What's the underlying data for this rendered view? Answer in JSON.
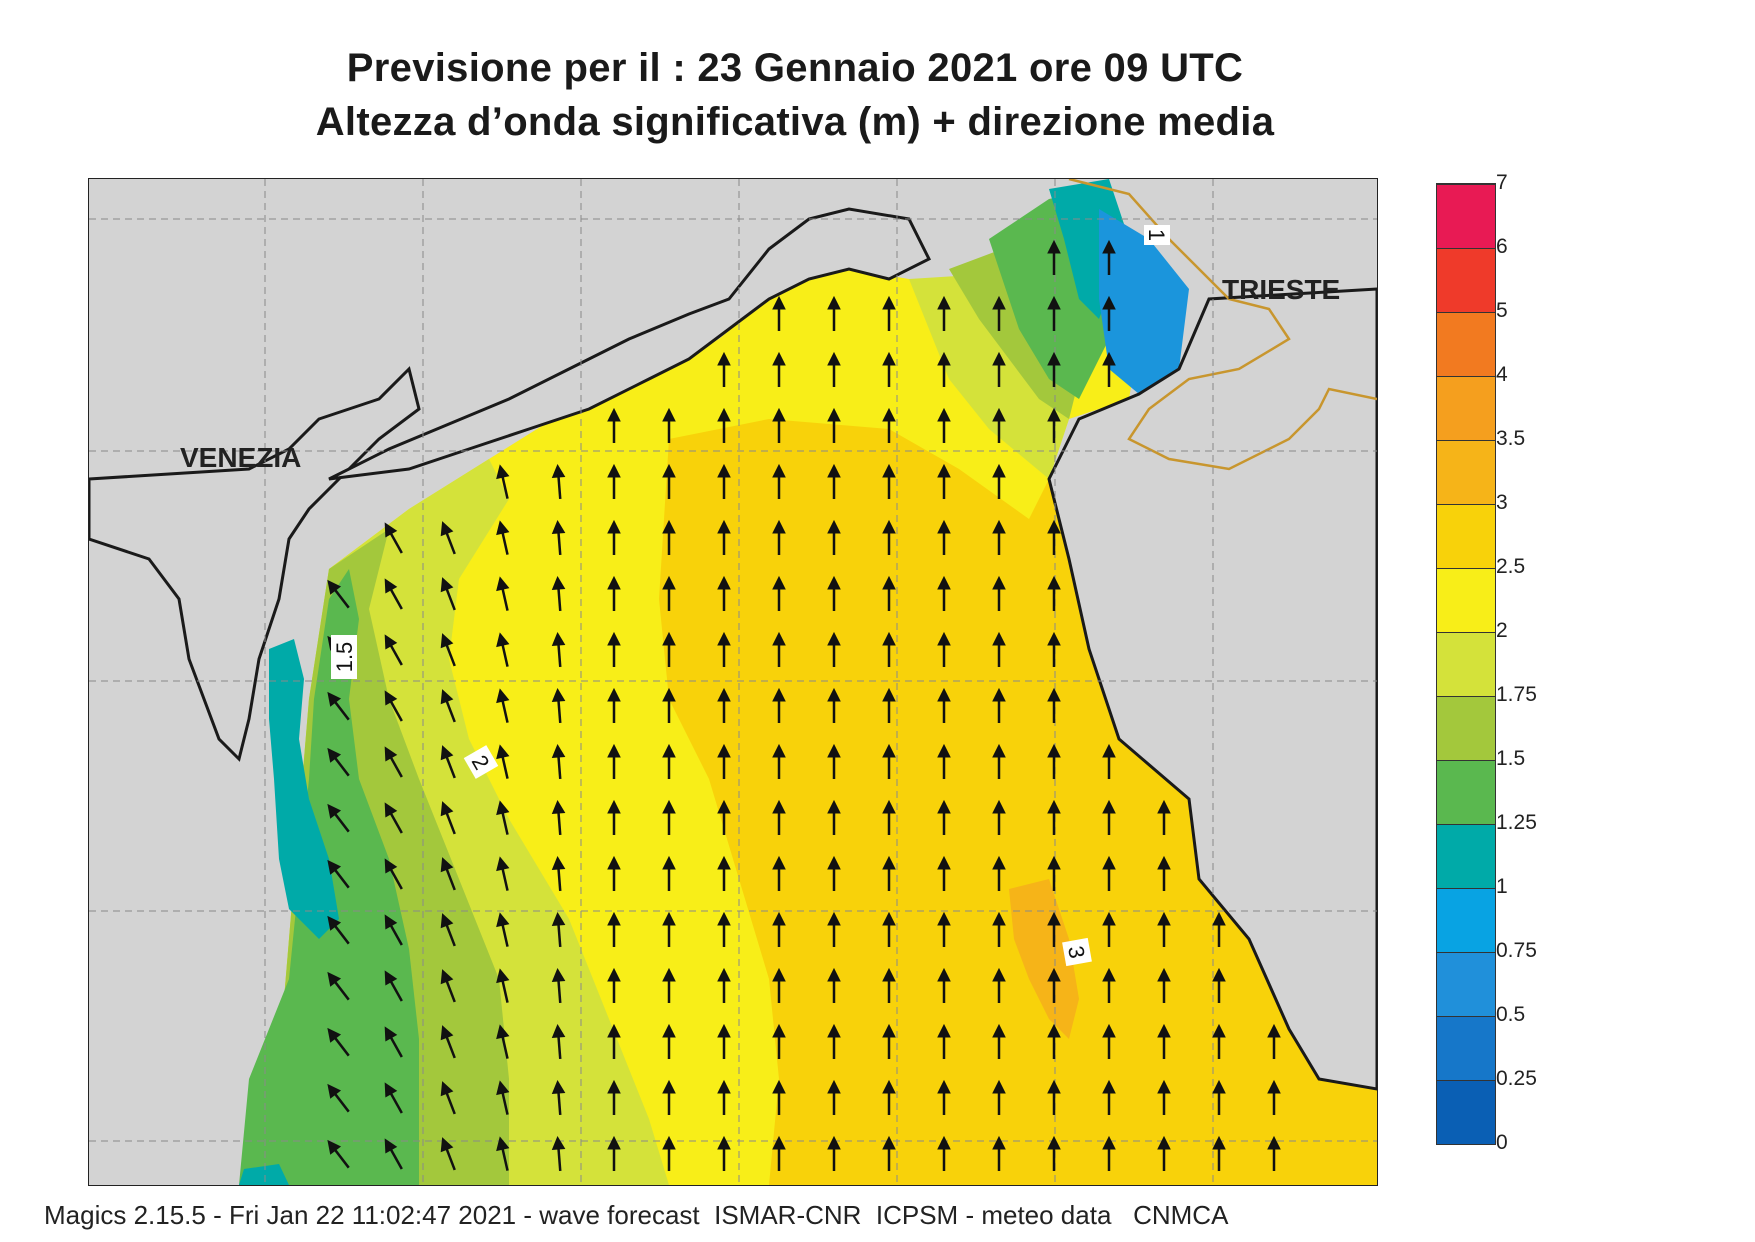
{
  "header": {
    "title_line1": "Previsione per il  :  23  Gennaio  2021    ore 09 UTC",
    "title_line2": "Altezza d’onda significativa (m) + direzione media"
  },
  "map": {
    "cities": [
      "VENEZIA",
      "TRIESTE"
    ],
    "contour_labels": [
      "1",
      "1.5",
      "2",
      "3"
    ],
    "arrow_direction": "north",
    "land_color": "#d3d3d3",
    "coast_color": "#1a1a1a",
    "border_color": "#c8962e"
  },
  "legend": {
    "ticks": [
      "0",
      "0.25",
      "0.5",
      "0.75",
      "1",
      "1.25",
      "1.5",
      "1.75",
      "2",
      "2.5",
      "3",
      "3.5",
      "4",
      "5",
      "6",
      "7"
    ],
    "colors": [
      "#0a5fb4",
      "#1677c9",
      "#2090da",
      "#08a3e3",
      "#00aaa8",
      "#5ab84f",
      "#a3c83c",
      "#d4e23a",
      "#f8ee18",
      "#f8d20a",
      "#f6b418",
      "#f59f1e",
      "#f27a20",
      "#ef3a2a",
      "#e81a54"
    ]
  },
  "footer": {
    "text": "Magics 2.15.5 - Fri Jan 22 11:02:47 2021 - wave forecast  ISMAR-CNR  ICPSM - meteo data   CNMCA"
  }
}
